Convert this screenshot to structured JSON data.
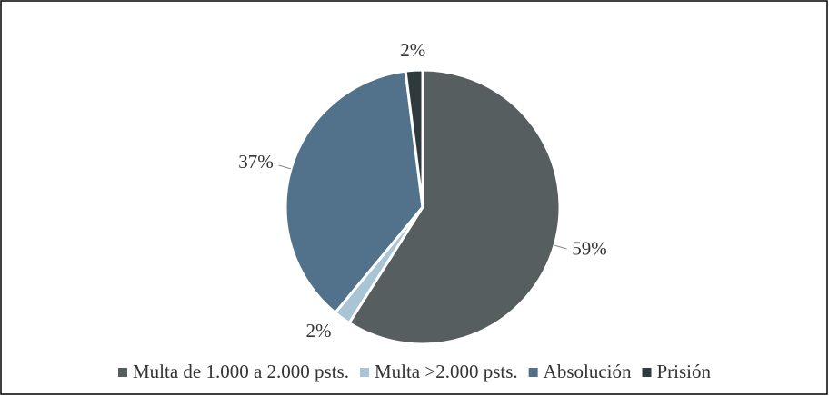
{
  "chart_data": {
    "type": "pie",
    "categories": [
      "Multa de 1.000 a 2.000 psts.",
      "Multa >2.000 psts.",
      "Absolución",
      "Prisión"
    ],
    "values": [
      59,
      2,
      37,
      2
    ],
    "value_labels": [
      "59%",
      "2%",
      "37%",
      "2%"
    ],
    "colors": [
      "#565e60",
      "#a9c4d4",
      "#52718a",
      "#2f3a3f"
    ],
    "legend": "bottom"
  }
}
